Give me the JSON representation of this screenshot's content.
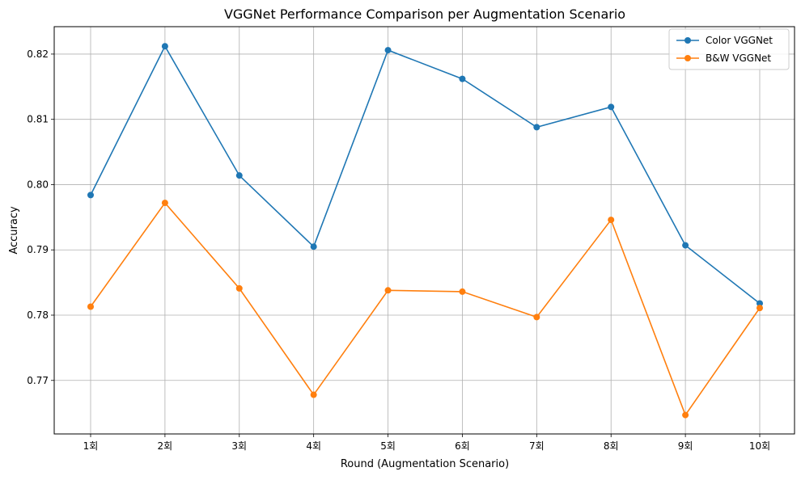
{
  "chart_data": {
    "type": "line",
    "title": "VGGNet Performance Comparison per Augmentation Scenario",
    "xlabel": "Round (Augmentation Scenario)",
    "ylabel": "Accuracy",
    "categories": [
      "1회",
      "2회",
      "3회",
      "4회",
      "5회",
      "6회",
      "7회",
      "8회",
      "9회",
      "10회"
    ],
    "ylim": [
      0.7618,
      0.8242
    ],
    "yticks": [
      0.77,
      0.78,
      0.79,
      0.8,
      0.81,
      0.82
    ],
    "ytick_labels": [
      "0.77",
      "0.78",
      "0.79",
      "0.80",
      "0.81",
      "0.82"
    ],
    "grid": true,
    "legend_position": "top-right",
    "series": [
      {
        "name": "Color VGGNet",
        "color": "#1f77b4",
        "marker": "circle",
        "values": [
          0.7984,
          0.8212,
          0.8014,
          0.7905,
          0.8206,
          0.8162,
          0.8088,
          0.8119,
          0.7907,
          0.7818
        ]
      },
      {
        "name": "B&W VGGNet",
        "color": "#ff7f0e",
        "marker": "circle",
        "values": [
          0.7813,
          0.7972,
          0.7841,
          0.7678,
          0.7838,
          0.7836,
          0.7797,
          0.7946,
          0.7647,
          0.7811
        ]
      }
    ]
  }
}
